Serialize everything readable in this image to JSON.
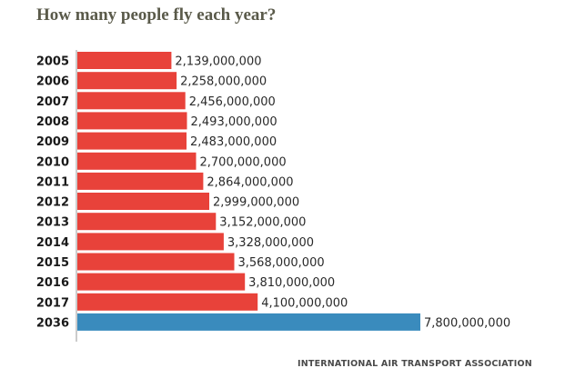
{
  "chart_data": {
    "type": "bar",
    "orientation": "horizontal",
    "title": "How many people fly each year?",
    "source": "INTERNATIONAL AIR TRANSPORT ASSOCIATION",
    "categories": [
      "2005",
      "2006",
      "2007",
      "2008",
      "2009",
      "2010",
      "2011",
      "2012",
      "2013",
      "2014",
      "2015",
      "2016",
      "2017",
      "2036"
    ],
    "values": [
      2139000000,
      2258000000,
      2456000000,
      2493000000,
      2483000000,
      2700000000,
      2864000000,
      2999000000,
      3152000000,
      3328000000,
      3568000000,
      3810000000,
      4100000000,
      7800000000
    ],
    "value_labels": [
      "2,139,000,000",
      "2,258,000,000",
      "2,456,000,000",
      "2,493,000,000",
      "2,483,000,000",
      "2,700,000,000",
      "2,864,000,000",
      "2,999,000,000",
      "3,152,000,000",
      "3,328,000,000",
      "3,568,000,000",
      "3,810,000,000",
      "4,100,000,000",
      "7,800,000,000"
    ],
    "colors": [
      "#e8423a",
      "#e8423a",
      "#e8423a",
      "#e8423a",
      "#e8423a",
      "#e8423a",
      "#e8423a",
      "#e8423a",
      "#e8423a",
      "#e8423a",
      "#e8423a",
      "#e8423a",
      "#e8423a",
      "#3a8bbd"
    ],
    "xlim": [
      0,
      7800000000
    ],
    "grid": false
  }
}
